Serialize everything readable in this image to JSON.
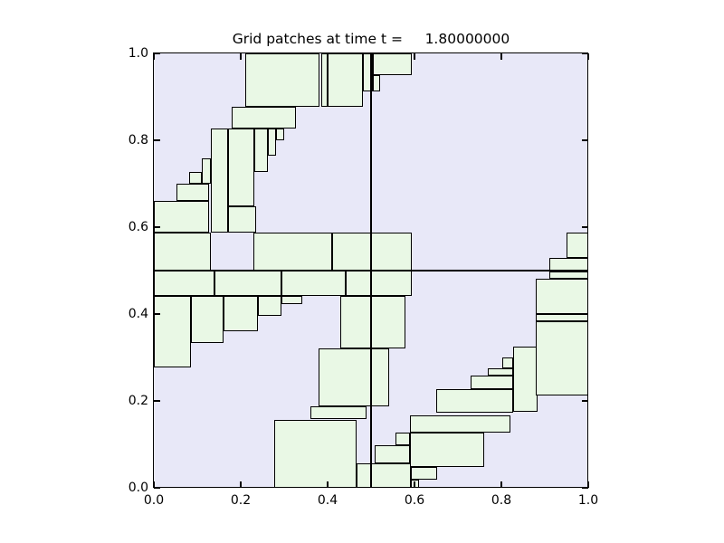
{
  "title": "Grid patches at time t =     1.80000000",
  "chart_data": {
    "type": "rectangles",
    "title": "Grid patches at time t =     1.80000000",
    "xlabel": "",
    "ylabel": "",
    "xlim": [
      0.0,
      1.0
    ],
    "ylim": [
      0.0,
      1.0
    ],
    "grid": false,
    "tick_positions": [
      0.0,
      0.2,
      0.4,
      0.6,
      0.8,
      1.0
    ],
    "x_tick_labels": [
      "0.0",
      "0.2",
      "0.4",
      "0.6",
      "0.8",
      "1.0"
    ],
    "y_tick_labels": [
      "0.0",
      "0.2",
      "0.4",
      "0.6",
      "0.8",
      "1.0"
    ],
    "colors": {
      "plot_background": "#e8e8f8",
      "patch_fill": "#e9f8e5",
      "patch_edge": "#000000",
      "frame": "#000000"
    },
    "domain_divider_lines": {
      "x": 0.5,
      "y": 0.5
    },
    "patches": [
      [
        0.21,
        0.877,
        0.381,
        1.0
      ],
      [
        0.385,
        0.877,
        0.401,
        1.0
      ],
      [
        0.401,
        0.877,
        0.481,
        1.0
      ],
      [
        0.481,
        0.913,
        0.504,
        1.0
      ],
      [
        0.504,
        0.949,
        0.594,
        1.0
      ],
      [
        0.504,
        0.913,
        0.521,
        0.949
      ],
      [
        0.179,
        0.827,
        0.328,
        0.877
      ],
      [
        0.17,
        0.647,
        0.232,
        0.827
      ],
      [
        0.232,
        0.727,
        0.263,
        0.827
      ],
      [
        0.263,
        0.765,
        0.281,
        0.827
      ],
      [
        0.281,
        0.799,
        0.301,
        0.827
      ],
      [
        0.132,
        0.588,
        0.17,
        0.827
      ],
      [
        0.17,
        0.588,
        0.236,
        0.647
      ],
      [
        0.11,
        0.699,
        0.132,
        0.758
      ],
      [
        0.081,
        0.699,
        0.11,
        0.727
      ],
      [
        0.053,
        0.661,
        0.128,
        0.699
      ],
      [
        0.0,
        0.588,
        0.128,
        0.661
      ],
      [
        0.0,
        0.5,
        0.132,
        0.588
      ],
      [
        0.23,
        0.5,
        0.411,
        0.587
      ],
      [
        0.411,
        0.5,
        0.5,
        0.587
      ],
      [
        0.5,
        0.5,
        0.594,
        0.587
      ],
      [
        0.0,
        0.441,
        0.139,
        0.5
      ],
      [
        0.139,
        0.441,
        0.293,
        0.5
      ],
      [
        0.293,
        0.441,
        0.441,
        0.5
      ],
      [
        0.441,
        0.441,
        0.5,
        0.5
      ],
      [
        0.5,
        0.441,
        0.594,
        0.5
      ],
      [
        0.0,
        0.277,
        0.086,
        0.441
      ],
      [
        0.086,
        0.333,
        0.16,
        0.441
      ],
      [
        0.16,
        0.36,
        0.24,
        0.441
      ],
      [
        0.24,
        0.395,
        0.294,
        0.441
      ],
      [
        0.294,
        0.423,
        0.341,
        0.441
      ],
      [
        0.429,
        0.321,
        0.5,
        0.441
      ],
      [
        0.5,
        0.321,
        0.58,
        0.441
      ],
      [
        0.379,
        0.187,
        0.542,
        0.321
      ],
      [
        0.361,
        0.158,
        0.49,
        0.187
      ],
      [
        0.278,
        0.0,
        0.467,
        0.156
      ],
      [
        0.467,
        0.0,
        0.5,
        0.057
      ],
      [
        0.5,
        0.0,
        0.592,
        0.057
      ],
      [
        0.509,
        0.057,
        0.589,
        0.097
      ],
      [
        0.556,
        0.097,
        0.589,
        0.128
      ],
      [
        0.592,
        0.0,
        0.611,
        0.019
      ],
      [
        0.592,
        0.019,
        0.653,
        0.048
      ],
      [
        0.589,
        0.048,
        0.76,
        0.128
      ],
      [
        0.589,
        0.128,
        0.821,
        0.167
      ],
      [
        0.649,
        0.172,
        0.827,
        0.227
      ],
      [
        0.729,
        0.227,
        0.827,
        0.258
      ],
      [
        0.769,
        0.258,
        0.827,
        0.276
      ],
      [
        0.802,
        0.276,
        0.827,
        0.299
      ],
      [
        0.827,
        0.176,
        0.883,
        0.326
      ],
      [
        0.879,
        0.213,
        1.0,
        0.384
      ],
      [
        0.879,
        0.384,
        1.0,
        0.399
      ],
      [
        0.879,
        0.399,
        1.0,
        0.482
      ],
      [
        0.91,
        0.482,
        1.0,
        0.498
      ],
      [
        0.91,
        0.498,
        1.0,
        0.529
      ],
      [
        0.951,
        0.529,
        1.0,
        0.588
      ]
    ]
  }
}
